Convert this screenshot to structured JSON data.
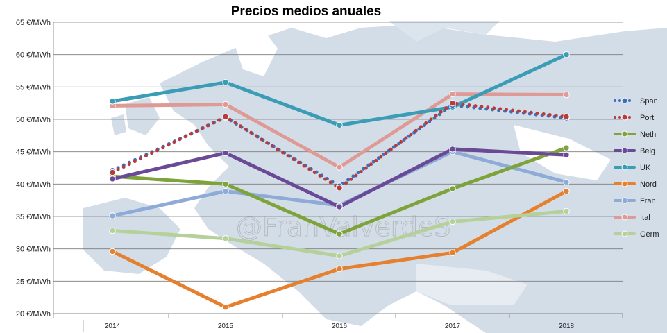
{
  "watermark": "@FranValverdeS",
  "chart_data": {
    "type": "line",
    "title": "Precios medios anuales",
    "xlabel": "",
    "ylabel": "",
    "categories": [
      "2014",
      "2015",
      "2016",
      "2017",
      "2018"
    ],
    "ylim": [
      20,
      65
    ],
    "yticks": [
      20,
      25,
      30,
      35,
      40,
      45,
      50,
      55,
      60,
      65
    ],
    "ytick_labels": [
      "20 €/MWh",
      "25 €/MWh",
      "30 €/MWh",
      "35 €/MWh",
      "40 €/MWh",
      "45 €/MWh",
      "50 €/MWh",
      "55 €/MWh",
      "60 €/MWh",
      "65 €/MWh"
    ],
    "grid": true,
    "legend_position": "right",
    "series": [
      {
        "name": "Span",
        "color": "#3d6fb8",
        "style": "dotted",
        "values": [
          42.1,
          50.3,
          39.7,
          52.2,
          50.2
        ]
      },
      {
        "name": "Port",
        "color": "#b83b3b",
        "style": "dotted",
        "values": [
          41.8,
          50.4,
          39.4,
          52.5,
          50.4
        ]
      },
      {
        "name": "Neth",
        "color": "#7ea33a",
        "style": "solid",
        "values": [
          41.2,
          40.0,
          32.3,
          39.3,
          45.6
        ]
      },
      {
        "name": "Belg",
        "color": "#6a4a96",
        "style": "solid",
        "values": [
          40.8,
          44.8,
          36.5,
          45.4,
          44.5
        ]
      },
      {
        "name": "UK",
        "color": "#3a9cb5",
        "style": "solid",
        "values": [
          52.8,
          55.7,
          49.1,
          51.9,
          60.0
        ]
      },
      {
        "name": "Nord",
        "color": "#e5802f",
        "style": "solid",
        "values": [
          29.6,
          21.0,
          26.9,
          29.4,
          38.9
        ]
      },
      {
        "name": "Fran",
        "color": "#8eaad6",
        "style": "solid",
        "values": [
          35.1,
          38.9,
          36.7,
          45.0,
          40.3
        ]
      },
      {
        "name": "Ital",
        "color": "#df9a96",
        "style": "solid",
        "values": [
          52.1,
          52.3,
          42.6,
          53.9,
          53.8
        ]
      },
      {
        "name": "Germ",
        "color": "#b6d09a",
        "style": "solid",
        "values": [
          32.8,
          31.6,
          28.9,
          34.2,
          35.8
        ]
      }
    ]
  }
}
